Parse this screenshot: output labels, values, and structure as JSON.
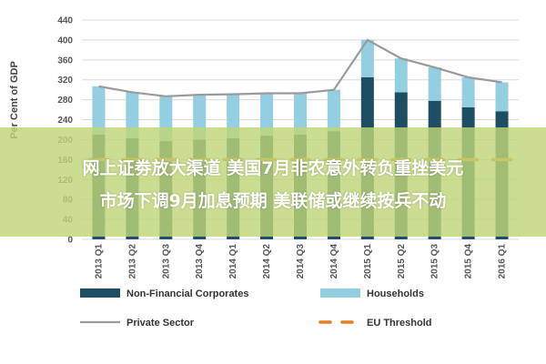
{
  "chart_data": {
    "type": "bar",
    "ylabel": "Per Cent of GDP",
    "ylim": [
      0,
      440
    ],
    "yticks": [
      0,
      40,
      80,
      120,
      160,
      200,
      240,
      280,
      320,
      360,
      400,
      440
    ],
    "categories": [
      "2013 Q1",
      "2013 Q2",
      "2013 Q3",
      "2013 Q4",
      "2014 Q1",
      "2014 Q2",
      "2014 Q3",
      "2014 Q4",
      "2015 Q1",
      "2015 Q2",
      "2015 Q3",
      "2015 Q4",
      "2016 Q1"
    ],
    "series": [
      {
        "name": "Non-Financial Corporates",
        "kind": "bar-stack",
        "color": "#1d4e63",
        "values": [
          210,
          203,
          197,
          200,
          203,
          208,
          210,
          217,
          325,
          295,
          278,
          265,
          257
        ]
      },
      {
        "name": "Households",
        "kind": "bar-stack",
        "color": "#93cfe0",
        "values": [
          97,
          92,
          90,
          90,
          88,
          85,
          83,
          83,
          75,
          68,
          67,
          60,
          58
        ]
      },
      {
        "name": "Private Sector",
        "kind": "line",
        "color": "#9a9a9a",
        "values": [
          307,
          295,
          287,
          290,
          291,
          293,
          293,
          300,
          400,
          363,
          345,
          325,
          315
        ]
      },
      {
        "name": "EU Threshold",
        "kind": "dash",
        "color": "#e67e22",
        "values": [
          160,
          160,
          160,
          160,
          160,
          160,
          160,
          160,
          160,
          160,
          160,
          160,
          160
        ]
      }
    ],
    "legend_position": "bottom",
    "grid": true
  },
  "overlay": {
    "line1": "网上证劵放大渠道 美国7月非农意外转负重挫美元",
    "line2": "市场下调9月加息预期 美联储或继续按兵不动"
  }
}
